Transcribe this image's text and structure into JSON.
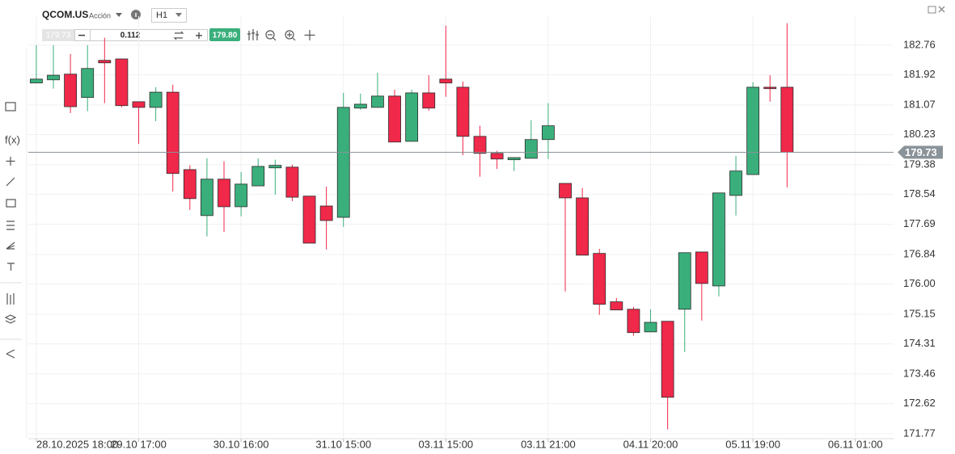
{
  "header": {
    "symbol": "QCOM.US",
    "asset_type": "Acción",
    "timeframe": "H1",
    "sell_price": "179.73",
    "volume": "0.112",
    "buy_price": "179.80"
  },
  "sidebar": {
    "function_label": "f(x)"
  },
  "chart_data": {
    "type": "candlestick",
    "x": [
      0,
      1,
      2,
      3,
      4,
      5,
      6,
      7,
      8,
      9,
      10,
      11,
      12,
      13,
      14,
      15,
      16,
      17,
      18,
      19,
      20,
      21,
      22,
      23,
      24,
      25,
      26,
      27,
      28,
      29,
      30,
      31,
      32,
      33,
      34,
      35,
      36,
      37,
      38,
      39,
      40,
      41,
      42,
      43,
      44
    ],
    "series": [
      {
        "up_color": "#3aaf7c",
        "down_color": "#f0284a",
        "open": [
          181.69,
          181.78,
          181.94,
          181.28,
          182.33,
          182.37,
          181.16,
          181.0,
          181.43,
          179.24,
          177.94,
          178.97,
          178.19,
          178.78,
          179.29,
          179.31,
          178.49,
          178.21,
          177.89,
          180.98,
          181.0,
          181.32,
          180.04,
          181.41,
          181.8,
          181.57,
          180.18,
          179.7,
          179.52,
          179.56,
          180.09,
          178.85,
          178.44,
          176.87,
          175.5,
          175.29,
          174.65,
          174.95,
          175.29,
          176.91,
          175.95,
          178.51,
          179.1,
          181.57,
          181.57
        ],
        "high": [
          182.76,
          182.76,
          182.51,
          182.76,
          182.97,
          182.37,
          181.16,
          181.57,
          181.64,
          179.36,
          179.56,
          179.47,
          179.17,
          179.56,
          179.52,
          179.38,
          178.49,
          178.76,
          181.41,
          181.39,
          181.98,
          181.5,
          181.5,
          181.91,
          183.31,
          181.73,
          180.48,
          179.77,
          179.58,
          180.64,
          181.12,
          178.85,
          178.72,
          177.0,
          175.61,
          175.36,
          175.29,
          174.95,
          176.89,
          176.91,
          178.58,
          179.63,
          181.71,
          181.91,
          183.38
        ],
        "low": [
          181.69,
          181.53,
          180.84,
          180.89,
          181.12,
          181.0,
          179.97,
          180.61,
          178.62,
          178.1,
          177.35,
          177.48,
          177.92,
          178.78,
          178.53,
          178.35,
          177.16,
          176.98,
          177.62,
          180.93,
          181.0,
          180.02,
          180.04,
          180.91,
          181.3,
          179.65,
          179.04,
          179.26,
          179.2,
          179.56,
          179.54,
          175.79,
          176.82,
          175.13,
          175.27,
          174.54,
          174.65,
          171.89,
          174.08,
          174.97,
          175.65,
          177.94,
          179.1,
          181.16,
          178.74
        ],
        "close": [
          181.8,
          181.91,
          181.02,
          182.1,
          182.26,
          181.05,
          181.0,
          181.43,
          179.13,
          178.42,
          178.97,
          178.19,
          178.83,
          179.33,
          179.36,
          178.46,
          177.16,
          177.8,
          181.0,
          181.09,
          181.32,
          180.02,
          181.41,
          180.98,
          181.69,
          180.18,
          179.7,
          179.54,
          179.58,
          180.09,
          180.48,
          178.44,
          176.82,
          175.43,
          175.27,
          174.63,
          174.92,
          172.8,
          176.89,
          176.02,
          178.58,
          179.2,
          181.57,
          181.53,
          179.73
        ]
      }
    ],
    "last_price": 179.73,
    "last_price_color": "#8a9399",
    "ylim": [
      171.63,
      183.58
    ],
    "yticks": [
      182.76,
      181.92,
      181.07,
      180.23,
      179.38,
      178.54,
      177.69,
      176.84,
      {
        "value": 176,
        "label": "176.00"
      },
      175.15,
      174.31,
      173.46,
      172.62,
      171.77
    ],
    "xlim": [
      -0.47,
      50.24
    ],
    "xticks": [
      {
        "value": 0,
        "label": "28.10.2025 18:00"
      },
      {
        "value": 6,
        "label": "29.10 17:00"
      },
      {
        "value": 12,
        "label": "30.10 16:00"
      },
      {
        "value": 18,
        "label": "31.10 15:00"
      },
      {
        "value": 24,
        "label": "03.11 15:00"
      },
      {
        "value": 30,
        "label": "03.11 21:00"
      },
      {
        "value": 36,
        "label": "04.11 20:00"
      },
      {
        "value": 42,
        "label": "05.11 19:00"
      },
      {
        "value": 48,
        "label": "06.11 01:00"
      }
    ],
    "grid": true
  }
}
